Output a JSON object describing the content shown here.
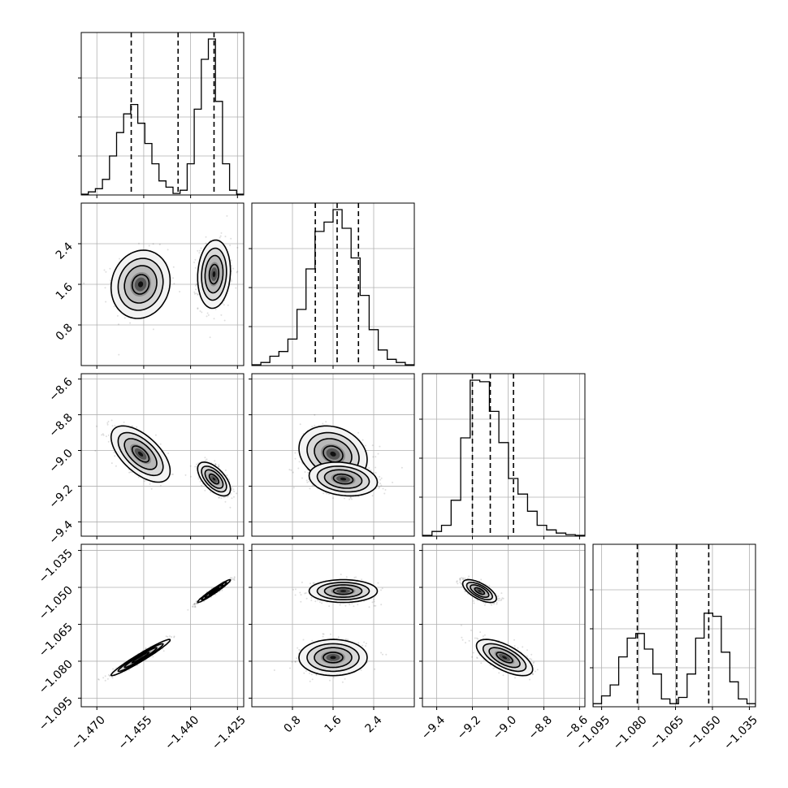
{
  "chart_data": {
    "type": "corner",
    "grid": true,
    "parameters": [
      {
        "range": [
          -1.475,
          -1.423
        ],
        "ticks": [
          -1.47,
          -1.455,
          -1.44,
          -1.425
        ],
        "tick_labels": [
          "−1.470",
          "−1.455",
          "−1.440",
          "−1.425"
        ]
      },
      {
        "range": [
          0.0,
          3.2
        ],
        "ticks": [
          0.8,
          1.6,
          2.4
        ],
        "tick_labels": [
          "0.8",
          "1.6",
          "2.4"
        ]
      },
      {
        "range": [
          -9.48,
          -8.57
        ],
        "ticks": [
          -9.4,
          -9.2,
          -9.0,
          -8.8,
          -8.6
        ],
        "tick_labels": [
          "−9.4",
          "−9.2",
          "−9.0",
          "−8.8",
          "−8.6"
        ]
      },
      {
        "range": [
          -1.0985,
          -1.0325
        ],
        "ticks": [
          -1.095,
          -1.08,
          -1.065,
          -1.05,
          -1.035
        ],
        "tick_labels": [
          "−1.095",
          "−1.080",
          "−1.065",
          "−1.050",
          "−1.035"
        ]
      }
    ],
    "quantiles": [
      [
        -1.459,
        -1.444,
        -1.4325
      ],
      [
        1.25,
        1.68,
        2.1
      ],
      [
        -9.2,
        -9.1,
        -8.97
      ],
      [
        -1.0805,
        -1.0645,
        -1.0515
      ]
    ],
    "histograms": [
      [
        0.005,
        0.02,
        0.04,
        0.1,
        0.25,
        0.4,
        0.52,
        0.58,
        0.46,
        0.33,
        0.2,
        0.09,
        0.05,
        0.01,
        0.03,
        0.2,
        0.55,
        0.87,
        1.0,
        0.6,
        0.2,
        0.03,
        0.005
      ],
      [
        0.005,
        0.02,
        0.06,
        0.09,
        0.17,
        0.36,
        0.62,
        0.86,
        0.92,
        1.0,
        0.88,
        0.69,
        0.45,
        0.23,
        0.1,
        0.04,
        0.02,
        0.005
      ],
      [
        0.005,
        0.03,
        0.07,
        0.23,
        0.63,
        1.0,
        0.99,
        0.8,
        0.6,
        0.37,
        0.27,
        0.16,
        0.07,
        0.04,
        0.02,
        0.01,
        0.005
      ],
      [
        0.02,
        0.07,
        0.14,
        0.32,
        0.44,
        0.47,
        0.37,
        0.21,
        0.05,
        0.02,
        0.06,
        0.21,
        0.44,
        0.6,
        0.58,
        0.35,
        0.16,
        0.05,
        0.02
      ]
    ],
    "modes": [
      {
        "center": [
          -1.456,
          1.6,
          -9.02,
          -1.0785
        ],
        "sd": [
          0.0045,
          0.32,
          0.075,
          0.0035
        ],
        "weight": 0.45
      },
      {
        "center": [
          -1.4325,
          1.8,
          -9.16,
          -1.0515
        ],
        "sd": [
          0.0025,
          0.32,
          0.045,
          0.0022
        ],
        "weight": 0.55
      }
    ],
    "correlations": {
      "0-1": 0.1,
      "0-2": -0.6,
      "1-2": -0.2,
      "0-3": 0.97,
      "1-3": 0.0,
      "2-3": -0.65
    }
  }
}
